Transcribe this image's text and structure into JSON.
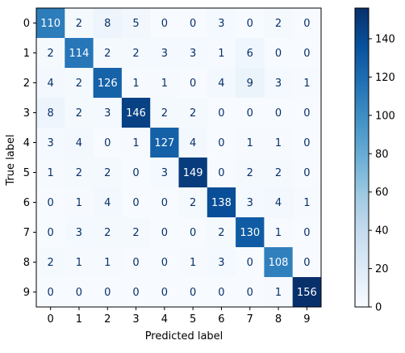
{
  "chart_data": {
    "type": "heatmap",
    "xlabel": "Predicted label",
    "ylabel": "True label",
    "x_categories": [
      "0",
      "1",
      "2",
      "3",
      "4",
      "5",
      "6",
      "7",
      "8",
      "9"
    ],
    "y_categories": [
      "0",
      "1",
      "2",
      "3",
      "4",
      "5",
      "6",
      "7",
      "8",
      "9"
    ],
    "matrix": [
      [
        110,
        2,
        8,
        5,
        0,
        0,
        3,
        0,
        2,
        0
      ],
      [
        2,
        114,
        2,
        2,
        3,
        3,
        1,
        6,
        0,
        0
      ],
      [
        4,
        2,
        126,
        1,
        1,
        0,
        4,
        9,
        3,
        1
      ],
      [
        8,
        2,
        3,
        146,
        2,
        2,
        0,
        0,
        0,
        0
      ],
      [
        3,
        4,
        0,
        1,
        127,
        4,
        0,
        1,
        1,
        0
      ],
      [
        1,
        2,
        2,
        0,
        3,
        149,
        0,
        2,
        2,
        0
      ],
      [
        0,
        1,
        4,
        0,
        0,
        2,
        138,
        3,
        4,
        1
      ],
      [
        0,
        3,
        2,
        2,
        0,
        0,
        2,
        130,
        1,
        0
      ],
      [
        2,
        1,
        1,
        0,
        0,
        1,
        3,
        0,
        108,
        0
      ],
      [
        0,
        0,
        0,
        0,
        0,
        0,
        0,
        0,
        1,
        156
      ]
    ],
    "colormap": "Blues",
    "colorbar": {
      "range": [
        0,
        156
      ],
      "ticks": [
        "0",
        "20",
        "40",
        "60",
        "80",
        "100",
        "120",
        "140"
      ],
      "tick_values": [
        0,
        20,
        40,
        60,
        80,
        100,
        120,
        140
      ]
    },
    "text_colors": {
      "dark": "#08306b",
      "light": "#ffffff"
    }
  }
}
